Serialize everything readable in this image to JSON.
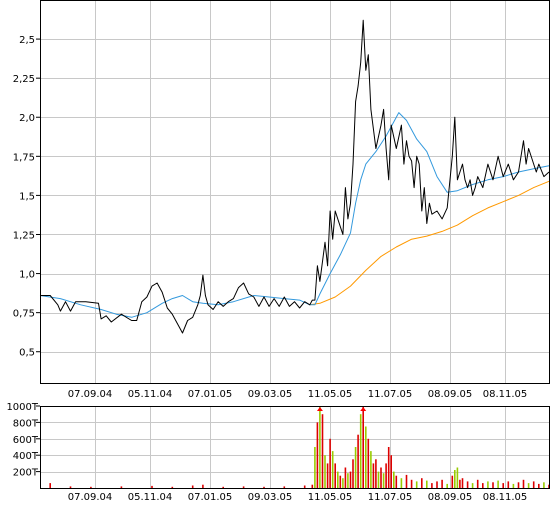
{
  "chart_data": [
    {
      "type": "line",
      "title": "",
      "xlabel": "",
      "ylabel": "",
      "ylim": [
        0.3,
        2.75
      ],
      "y_ticks": [
        0.5,
        0.75,
        1.0,
        1.25,
        1.5,
        1.75,
        2.0,
        2.25,
        2.5
      ],
      "y_tick_labels": [
        "0,5",
        "0,75",
        "1,0",
        "1,25",
        "1,5",
        "1,75",
        "2,0",
        "2,25",
        "2,5"
      ],
      "x_tick_labels": [
        "07.09.04",
        "05.11.04",
        "07.01.05",
        "09.03.05",
        "11.05.05",
        "11.07.05",
        "08.09.05",
        "08.11.05"
      ],
      "grid": true,
      "series": [
        {
          "role": "price",
          "color": "#000000",
          "points": [
            [
              0.0,
              0.86
            ],
            [
              2.0,
              0.86
            ],
            [
              3.5,
              0.8
            ],
            [
              4.0,
              0.76
            ],
            [
              5.0,
              0.82
            ],
            [
              6.0,
              0.76
            ],
            [
              7.0,
              0.82
            ],
            [
              9.0,
              0.82
            ],
            [
              11.5,
              0.81
            ],
            [
              12.0,
              0.71
            ],
            [
              13.0,
              0.73
            ],
            [
              14.0,
              0.69
            ],
            [
              16.0,
              0.74
            ],
            [
              18.0,
              0.7
            ],
            [
              19.0,
              0.7
            ],
            [
              20.0,
              0.82
            ],
            [
              21.0,
              0.85
            ],
            [
              22.0,
              0.92
            ],
            [
              23.0,
              0.94
            ],
            [
              24.0,
              0.88
            ],
            [
              25.0,
              0.78
            ],
            [
              26.0,
              0.74
            ],
            [
              27.0,
              0.68
            ],
            [
              28.0,
              0.62
            ],
            [
              29.0,
              0.7
            ],
            [
              30.0,
              0.72
            ],
            [
              31.0,
              0.8
            ],
            [
              31.5,
              0.86
            ],
            [
              32.0,
              0.99
            ],
            [
              32.5,
              0.86
            ],
            [
              33.0,
              0.8
            ],
            [
              34.0,
              0.77
            ],
            [
              35.0,
              0.82
            ],
            [
              36.0,
              0.79
            ],
            [
              37.0,
              0.82
            ],
            [
              38.0,
              0.84
            ],
            [
              39.0,
              0.91
            ],
            [
              40.0,
              0.94
            ],
            [
              41.0,
              0.87
            ],
            [
              42.0,
              0.85
            ],
            [
              43.0,
              0.79
            ],
            [
              44.0,
              0.85
            ],
            [
              45.0,
              0.79
            ],
            [
              46.0,
              0.84
            ],
            [
              47.0,
              0.79
            ],
            [
              48.0,
              0.85
            ],
            [
              49.0,
              0.79
            ],
            [
              50.0,
              0.82
            ],
            [
              51.0,
              0.78
            ],
            [
              52.0,
              0.82
            ],
            [
              53.0,
              0.8
            ],
            [
              53.5,
              0.83
            ],
            [
              54.0,
              0.83
            ],
            [
              54.5,
              1.05
            ],
            [
              55.0,
              0.95
            ],
            [
              56.0,
              1.2
            ],
            [
              56.5,
              1.05
            ],
            [
              57.0,
              1.4
            ],
            [
              57.5,
              1.22
            ],
            [
              58.0,
              1.4
            ],
            [
              59.0,
              1.3
            ],
            [
              59.5,
              1.25
            ],
            [
              60.0,
              1.55
            ],
            [
              60.5,
              1.35
            ],
            [
              61.0,
              1.45
            ],
            [
              61.5,
              1.7
            ],
            [
              62.0,
              2.1
            ],
            [
              62.5,
              2.2
            ],
            [
              63.0,
              2.35
            ],
            [
              63.5,
              2.62
            ],
            [
              64.0,
              2.3
            ],
            [
              64.5,
              2.4
            ],
            [
              65.0,
              2.05
            ],
            [
              66.0,
              1.8
            ],
            [
              67.0,
              1.95
            ],
            [
              67.5,
              2.05
            ],
            [
              68.0,
              1.8
            ],
            [
              68.5,
              1.6
            ],
            [
              69.0,
              1.95
            ],
            [
              70.0,
              1.8
            ],
            [
              71.0,
              1.95
            ],
            [
              71.5,
              1.7
            ],
            [
              72.0,
              1.85
            ],
            [
              72.5,
              1.75
            ],
            [
              73.0,
              1.72
            ],
            [
              73.5,
              1.55
            ],
            [
              74.0,
              1.75
            ],
            [
              74.5,
              1.7
            ],
            [
              75.0,
              1.4
            ],
            [
              75.5,
              1.55
            ],
            [
              76.0,
              1.32
            ],
            [
              76.5,
              1.45
            ],
            [
              77.0,
              1.38
            ],
            [
              78.0,
              1.4
            ],
            [
              79.0,
              1.35
            ],
            [
              80.0,
              1.42
            ],
            [
              81.0,
              1.75
            ],
            [
              81.5,
              2.0
            ],
            [
              82.0,
              1.6
            ],
            [
              83.0,
              1.7
            ],
            [
              83.5,
              1.6
            ],
            [
              84.0,
              1.55
            ],
            [
              84.5,
              1.6
            ],
            [
              85.0,
              1.5
            ],
            [
              85.5,
              1.55
            ],
            [
              86.0,
              1.62
            ],
            [
              87.0,
              1.55
            ],
            [
              88.0,
              1.7
            ],
            [
              89.0,
              1.6
            ],
            [
              90.0,
              1.75
            ],
            [
              91.0,
              1.62
            ],
            [
              92.0,
              1.7
            ],
            [
              93.0,
              1.6
            ],
            [
              94.0,
              1.65
            ],
            [
              95.0,
              1.85
            ],
            [
              95.5,
              1.7
            ],
            [
              96.0,
              1.8
            ],
            [
              97.0,
              1.7
            ],
            [
              97.5,
              1.65
            ],
            [
              98.0,
              1.7
            ],
            [
              99.0,
              1.62
            ],
            [
              100.0,
              1.65
            ]
          ]
        },
        {
          "role": "moving-average-short",
          "color": "#3399dd",
          "points": [
            [
              0.0,
              0.86
            ],
            [
              4.0,
              0.84
            ],
            [
              8.0,
              0.8
            ],
            [
              12.0,
              0.77
            ],
            [
              15.0,
              0.74
            ],
            [
              18.0,
              0.72
            ],
            [
              21.0,
              0.75
            ],
            [
              24.0,
              0.81
            ],
            [
              26.0,
              0.84
            ],
            [
              28.0,
              0.86
            ],
            [
              30.0,
              0.82
            ],
            [
              32.0,
              0.81
            ],
            [
              35.0,
              0.8
            ],
            [
              38.0,
              0.82
            ],
            [
              42.0,
              0.86
            ],
            [
              45.0,
              0.85
            ],
            [
              48.0,
              0.84
            ],
            [
              51.0,
              0.83
            ],
            [
              53.0,
              0.8
            ],
            [
              54.0,
              0.8
            ],
            [
              55.0,
              0.87
            ],
            [
              57.0,
              1.0
            ],
            [
              59.0,
              1.12
            ],
            [
              61.0,
              1.26
            ],
            [
              62.0,
              1.45
            ],
            [
              63.0,
              1.6
            ],
            [
              64.0,
              1.7
            ],
            [
              66.0,
              1.78
            ],
            [
              68.0,
              1.88
            ],
            [
              69.5,
              1.97
            ],
            [
              70.5,
              2.03
            ],
            [
              72.0,
              1.98
            ],
            [
              74.0,
              1.86
            ],
            [
              76.0,
              1.78
            ],
            [
              78.0,
              1.62
            ],
            [
              80.0,
              1.52
            ],
            [
              82.0,
              1.53
            ],
            [
              85.0,
              1.57
            ],
            [
              88.0,
              1.6
            ],
            [
              91.0,
              1.62
            ],
            [
              94.0,
              1.65
            ],
            [
              97.0,
              1.67
            ],
            [
              100.0,
              1.69
            ]
          ]
        },
        {
          "role": "moving-average-long",
          "color": "#ff9900",
          "points": [
            [
              53.0,
              0.8
            ],
            [
              55.0,
              0.81
            ],
            [
              58.0,
              0.85
            ],
            [
              61.0,
              0.92
            ],
            [
              64.0,
              1.02
            ],
            [
              67.0,
              1.11
            ],
            [
              70.0,
              1.17
            ],
            [
              73.0,
              1.22
            ],
            [
              76.0,
              1.24
            ],
            [
              79.0,
              1.27
            ],
            [
              82.0,
              1.31
            ],
            [
              85.0,
              1.37
            ],
            [
              88.0,
              1.42
            ],
            [
              91.0,
              1.46
            ],
            [
              94.0,
              1.5
            ],
            [
              97.0,
              1.55
            ],
            [
              100.0,
              1.59
            ]
          ]
        }
      ]
    },
    {
      "type": "bar",
      "title": "",
      "ylim": [
        0,
        1000
      ],
      "y_ticks": [
        200,
        400,
        600,
        800,
        1000
      ],
      "y_tick_labels": [
        "200T",
        "400T",
        "600T",
        "800T",
        "1000T"
      ],
      "x_tick_labels": [
        "07.09.04",
        "05.11.04",
        "07.01.05",
        "09.03.05",
        "11.05.05",
        "11.07.05",
        "08.09.05",
        "08.11.05"
      ],
      "colors": {
        "up": "#99cc00",
        "down": "#dd0000",
        "overflow_marker": "#ff0000"
      },
      "bars": [
        [
          2.0,
          60,
          "down"
        ],
        [
          6.0,
          20,
          "down"
        ],
        [
          10.0,
          15,
          "down"
        ],
        [
          16.0,
          20,
          "down"
        ],
        [
          22.0,
          25,
          "down"
        ],
        [
          26.0,
          15,
          "down"
        ],
        [
          30.0,
          30,
          "down"
        ],
        [
          32.0,
          40,
          "down"
        ],
        [
          36.0,
          15,
          "down"
        ],
        [
          40.0,
          20,
          "down"
        ],
        [
          44.0,
          15,
          "down"
        ],
        [
          48.0,
          20,
          "down"
        ],
        [
          52.0,
          30,
          "down"
        ],
        [
          53.5,
          40,
          "down"
        ],
        [
          54.0,
          500,
          "up"
        ],
        [
          54.5,
          800,
          "down"
        ],
        [
          55.0,
          1000,
          "up"
        ],
        [
          55.5,
          900,
          "down"
        ],
        [
          56.0,
          400,
          "up"
        ],
        [
          56.5,
          300,
          "down"
        ],
        [
          57.0,
          600,
          "down"
        ],
        [
          57.5,
          450,
          "up"
        ],
        [
          58.0,
          300,
          "down"
        ],
        [
          58.5,
          200,
          "up"
        ],
        [
          59.0,
          150,
          "down"
        ],
        [
          59.5,
          120,
          "up"
        ],
        [
          60.0,
          250,
          "down"
        ],
        [
          60.5,
          180,
          "up"
        ],
        [
          61.0,
          200,
          "down"
        ],
        [
          61.5,
          350,
          "down"
        ],
        [
          62.0,
          500,
          "up"
        ],
        [
          62.5,
          650,
          "down"
        ],
        [
          63.0,
          900,
          "up"
        ],
        [
          63.5,
          1000,
          "down"
        ],
        [
          64.0,
          750,
          "up"
        ],
        [
          64.5,
          600,
          "down"
        ],
        [
          65.0,
          450,
          "up"
        ],
        [
          65.5,
          300,
          "down"
        ],
        [
          66.0,
          350,
          "down"
        ],
        [
          66.5,
          200,
          "up"
        ],
        [
          67.0,
          250,
          "down"
        ],
        [
          67.5,
          180,
          "up"
        ],
        [
          68.0,
          300,
          "down"
        ],
        [
          68.5,
          500,
          "down"
        ],
        [
          69.0,
          400,
          "down"
        ],
        [
          69.5,
          200,
          "up"
        ],
        [
          70.0,
          150,
          "down"
        ],
        [
          71.0,
          120,
          "up"
        ],
        [
          72.0,
          160,
          "down"
        ],
        [
          73.0,
          100,
          "down"
        ],
        [
          74.0,
          80,
          "up"
        ],
        [
          75.0,
          120,
          "down"
        ],
        [
          76.0,
          90,
          "up"
        ],
        [
          77.0,
          60,
          "down"
        ],
        [
          78.0,
          80,
          "down"
        ],
        [
          79.0,
          100,
          "down"
        ],
        [
          80.0,
          50,
          "up"
        ],
        [
          81.0,
          150,
          "down"
        ],
        [
          81.5,
          220,
          "up"
        ],
        [
          82.0,
          250,
          "up"
        ],
        [
          82.5,
          100,
          "down"
        ],
        [
          83.0,
          120,
          "down"
        ],
        [
          84.0,
          80,
          "down"
        ],
        [
          85.0,
          60,
          "up"
        ],
        [
          86.0,
          100,
          "down"
        ],
        [
          87.0,
          60,
          "down"
        ],
        [
          88.0,
          80,
          "up"
        ],
        [
          89.0,
          70,
          "down"
        ],
        [
          90.0,
          90,
          "up"
        ],
        [
          91.0,
          60,
          "down"
        ],
        [
          92.0,
          80,
          "down"
        ],
        [
          93.0,
          50,
          "up"
        ],
        [
          94.0,
          70,
          "down"
        ],
        [
          95.0,
          100,
          "down"
        ],
        [
          96.0,
          60,
          "up"
        ],
        [
          97.0,
          80,
          "down"
        ],
        [
          98.0,
          50,
          "down"
        ],
        [
          99.0,
          70,
          "up"
        ],
        [
          100.0,
          40,
          "down"
        ]
      ],
      "overflow_at": [
        55.0,
        63.5
      ]
    }
  ]
}
